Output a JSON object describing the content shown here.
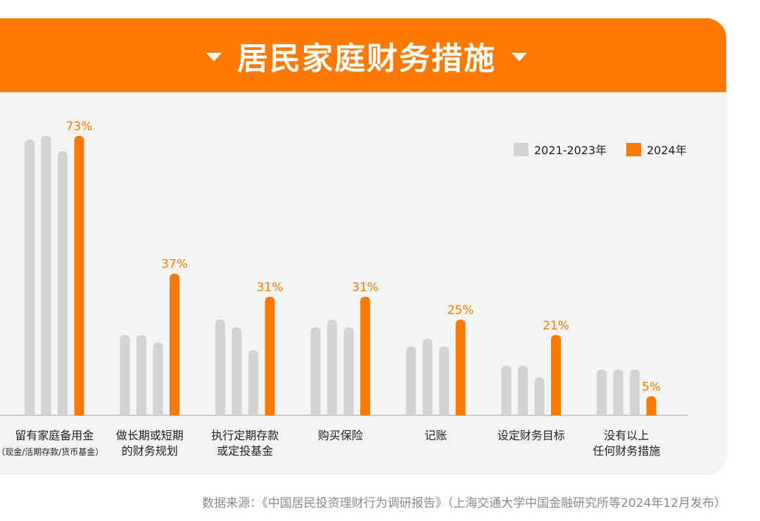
{
  "title": "居民家庭财务措施",
  "source": "数据来源：《中国居民投资理财行为调研报告》（上海交通大学中国金融研究所等2024年12月发布）",
  "colors": {
    "accent": "#ff7a00",
    "grey": "#d3d3d3",
    "background": "#f4f4f4"
  },
  "chart_data": {
    "type": "bar",
    "title": "居民家庭财务措施",
    "legend": {
      "placement": "top-right",
      "entries": [
        "2021-2023年",
        "2024年"
      ]
    },
    "series": [
      {
        "name": "2021",
        "color": "#d3d3d3",
        "values": [
          72,
          21,
          25,
          23,
          18,
          13,
          12
        ]
      },
      {
        "name": "2022",
        "color": "#d3d3d3",
        "values": [
          73,
          21,
          23,
          25,
          20,
          13,
          12
        ]
      },
      {
        "name": "2023",
        "color": "#d3d3d3",
        "values": [
          69,
          19,
          17,
          23,
          18,
          10,
          12
        ]
      },
      {
        "name": "2024年",
        "color": "#ff7a00",
        "values": [
          73,
          37,
          31,
          31,
          25,
          21,
          5
        ],
        "labels": [
          "73%",
          "37%",
          "31%",
          "31%",
          "25%",
          "21%",
          "5%"
        ]
      }
    ],
    "categories": [
      [
        "留有家庭备用金",
        "（现金/活期存款/货币基金）"
      ],
      [
        "做长期或短期",
        "的财务规划"
      ],
      [
        "执行定期存款",
        "或定投基金"
      ],
      [
        "购买保险"
      ],
      [
        "记账"
      ],
      [
        "设定财务目标"
      ],
      [
        "没有以上",
        "任何财务措施"
      ]
    ],
    "ylim": [
      0,
      80
    ],
    "grid": false
  }
}
